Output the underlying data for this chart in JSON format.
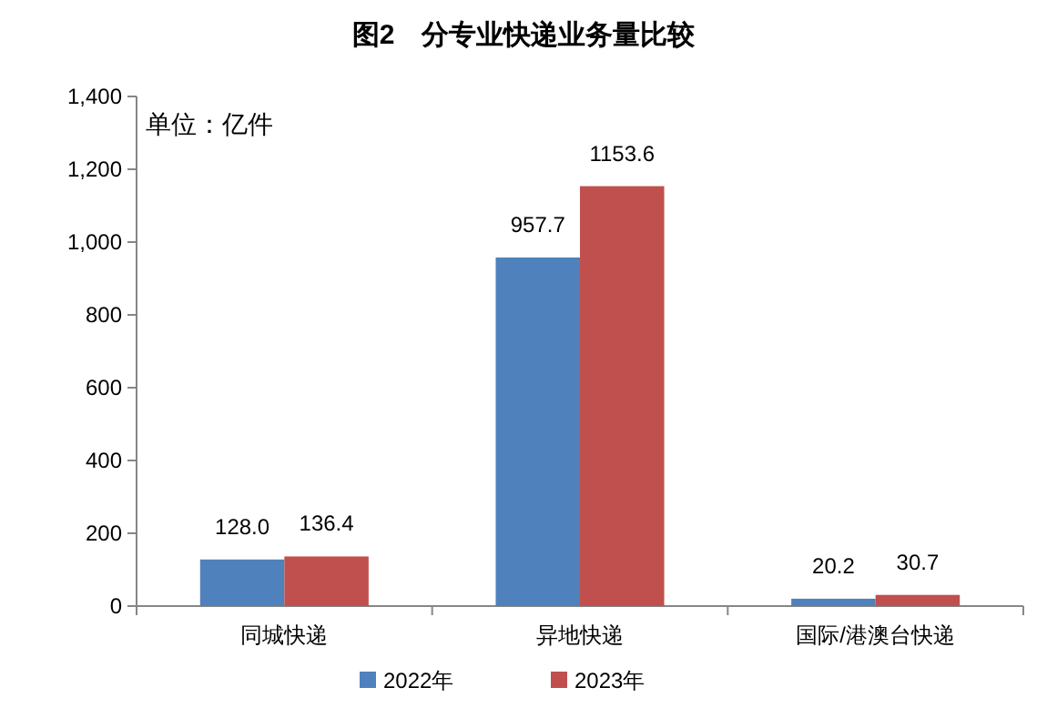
{
  "chart_data": {
    "type": "bar",
    "title": "图2　分专业快递业务量比较",
    "annotations": [
      "单位：亿件"
    ],
    "categories": [
      "同城快递",
      "异地快递",
      "国际/港澳台快递"
    ],
    "series": [
      {
        "name": "2022年",
        "color": "#4f81bd",
        "values": [
          128.0,
          957.7,
          20.2
        ],
        "value_labels": [
          "128.0",
          "957.7",
          "20.2"
        ]
      },
      {
        "name": "2023年",
        "color": "#c0504d",
        "values": [
          136.4,
          1153.6,
          30.7
        ],
        "value_labels": [
          "136.4",
          "1153.6",
          "30.7"
        ]
      }
    ],
    "ylim": [
      0,
      1400
    ],
    "yticks": [
      0,
      200,
      400,
      600,
      800,
      {
        "value": 1000,
        "label": "1,000"
      },
      {
        "value": 1200,
        "label": "1,200"
      },
      {
        "value": 1400,
        "label": "1,400"
      }
    ],
    "legend": "bottom"
  }
}
